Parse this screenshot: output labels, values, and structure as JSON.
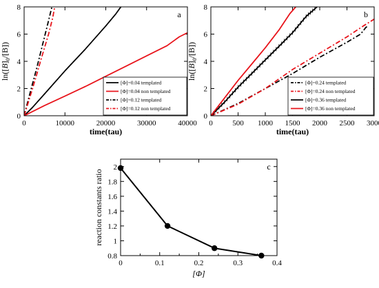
{
  "chart_data": [
    {
      "type": "line",
      "panel_label": "a",
      "xlabel": "time(tau)",
      "ylabel": "ln([B]0/[B])",
      "ylabel_parts": {
        "pre": "ln([",
        "var": "B",
        "mid": "]",
        "sub": "0",
        "post": "/[B])"
      },
      "xlim": [
        0,
        40000
      ],
      "ylim": [
        0,
        8
      ],
      "xticks": [
        0,
        10000,
        20000,
        30000,
        40000
      ],
      "xtick_labels": [
        "0",
        "10000",
        "20000",
        "30000",
        "40000"
      ],
      "yticks": [
        0,
        2,
        4,
        6,
        8
      ],
      "ytick_labels": [
        "0",
        "2",
        "4",
        "6",
        "8"
      ],
      "legend_position": "bottom-right",
      "series": [
        {
          "name": "[Φ]=0.04 templated",
          "color": "#000000",
          "dash": "solid",
          "x": [
            0,
            2000,
            5000,
            10000,
            15000,
            20000,
            22500,
            23700
          ],
          "y": [
            0,
            0.6,
            1.6,
            3.3,
            4.9,
            6.6,
            7.5,
            8.0
          ]
        },
        {
          "name": "[Φ]=0.04 non templated",
          "color": "#e8141b",
          "dash": "solid",
          "x": [
            0,
            5000,
            10000,
            15000,
            20000,
            25000,
            30000,
            35000,
            38000,
            40000
          ],
          "y": [
            0,
            0.75,
            1.45,
            2.15,
            2.9,
            3.65,
            4.4,
            5.15,
            5.8,
            6.1
          ]
        },
        {
          "name": "[Φ]=0.12 templated",
          "color": "#000000",
          "dash": "dashdot",
          "x": [
            0,
            1000,
            2000,
            3000,
            4000,
            5000,
            6000,
            6800
          ],
          "y": [
            0,
            1.15,
            2.3,
            3.4,
            4.6,
            5.8,
            7.0,
            8.0
          ]
        },
        {
          "name": "[Φ]=0.12 non templated",
          "color": "#e8141b",
          "dash": "dashdot",
          "x": [
            0,
            1000,
            2000,
            3000,
            4000,
            5000,
            6000,
            7000,
            7500
          ],
          "y": [
            0,
            0.95,
            1.95,
            2.95,
            4.0,
            5.0,
            6.0,
            7.2,
            8.0
          ]
        }
      ]
    },
    {
      "type": "line",
      "panel_label": "b",
      "xlabel": "time(tau)",
      "ylabel": "ln([B]0/[B])",
      "ylabel_parts": {
        "pre": "ln([",
        "var": "B",
        "mid": "]",
        "sub": "0",
        "post": "/[B])"
      },
      "xlim": [
        0,
        3000
      ],
      "ylim": [
        0,
        8
      ],
      "xticks": [
        0,
        500,
        1000,
        1500,
        2000,
        2500,
        3000
      ],
      "xtick_labels": [
        "0",
        "500",
        "1000",
        "1500",
        "2000",
        "2500",
        "3000"
      ],
      "yticks": [
        0,
        2,
        4,
        6,
        8
      ],
      "ytick_labels": [
        "0",
        "2",
        "4",
        "6",
        "8"
      ],
      "legend_position": "bottom-right",
      "series": [
        {
          "name": "[Φ]=0.24 templated",
          "color": "#000000",
          "dash": "dashdot",
          "x": [
            0,
            500,
            1000,
            1500,
            2000,
            2500,
            2750,
            2850,
            2900
          ],
          "y": [
            0,
            0.9,
            2.0,
            3.1,
            4.3,
            5.4,
            6.0,
            6.5,
            6.6
          ]
        },
        {
          "name": "[Φ]=0.24 non templated",
          "color": "#e8141b",
          "dash": "dashdot",
          "x": [
            0,
            500,
            1000,
            1500,
            2000,
            2500,
            2800,
            3000
          ],
          "y": [
            0,
            0.85,
            2.0,
            3.4,
            4.6,
            5.8,
            6.6,
            7.1
          ]
        },
        {
          "name": "[Φ]=0.36 templated",
          "color": "#000000",
          "dash": "solid",
          "error_bars": true,
          "x": [
            0,
            250,
            500,
            750,
            1000,
            1250,
            1500,
            1750,
            1950
          ],
          "y": [
            0,
            1.0,
            2.1,
            3.1,
            4.1,
            5.1,
            6.1,
            7.3,
            8.0
          ]
        },
        {
          "name": "[Φ]=0.36 non templated",
          "color": "#e8141b",
          "dash": "solid",
          "x": [
            0,
            250,
            500,
            750,
            1000,
            1250,
            1450,
            1560
          ],
          "y": [
            0,
            1.3,
            2.6,
            3.8,
            5.0,
            6.3,
            7.5,
            8.0
          ]
        }
      ]
    },
    {
      "type": "line",
      "panel_label": "c",
      "xlabel": "[Φ]",
      "ylabel": "reaction constants ratio",
      "xlim": [
        0,
        0.4
      ],
      "ylim": [
        0.8,
        2.1
      ],
      "xticks": [
        0,
        0.1,
        0.2,
        0.3,
        0.4
      ],
      "xtick_labels": [
        "0",
        "0.1",
        "0.2",
        "0.3",
        "0.4"
      ],
      "yticks": [
        0.8,
        1.0,
        1.2,
        1.4,
        1.6,
        1.8,
        2.0
      ],
      "ytick_labels": [
        "0.8",
        "1",
        "1.2",
        "1.4",
        "1.6",
        "1.8",
        "2"
      ],
      "series": [
        {
          "color": "#000000",
          "markers": true,
          "x": [
            0.0,
            0.12,
            0.24,
            0.36
          ],
          "y": [
            1.98,
            1.2,
            0.9,
            0.8
          ]
        }
      ]
    }
  ]
}
